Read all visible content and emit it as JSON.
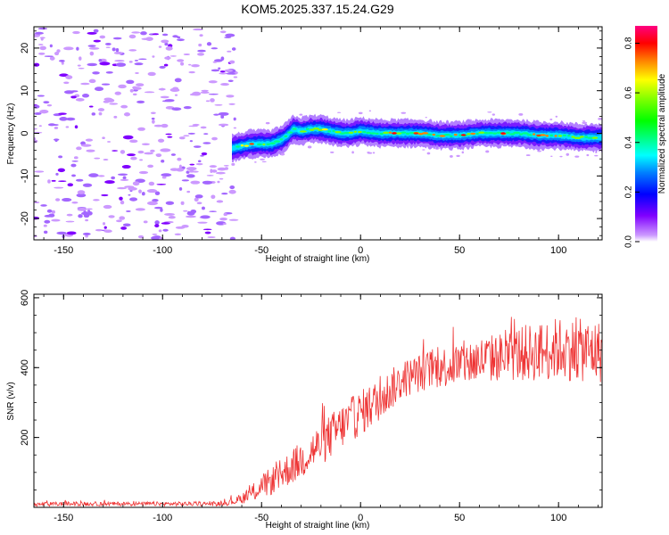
{
  "chart_data": [
    {
      "type": "heatmap",
      "title": "KOM5.2025.337.15.24.G29",
      "xlabel": "Height of straight line (km)",
      "ylabel": "Frequency (Hz)",
      "xlim": [
        -165,
        122
      ],
      "ylim": [
        -25,
        25
      ],
      "xticks": [
        -150,
        -100,
        -50,
        0,
        50,
        100
      ],
      "yticks": [
        -20,
        -10,
        0,
        10,
        20
      ],
      "colorbar": {
        "label": "Normalized spectral amplitude",
        "range": [
          0,
          0.87
        ],
        "ticks": [
          0.0,
          0.2,
          0.4,
          0.6,
          0.8
        ],
        "colors": [
          "#cc99ff",
          "#8000ff",
          "#0000ff",
          "#0080ff",
          "#00ffff",
          "#00ff80",
          "#00ff00",
          "#80ff00",
          "#ffff00",
          "#ff8000",
          "#ff0000",
          "#ff0080"
        ]
      },
      "noise_region_x": [
        -165,
        -65
      ],
      "trace": {
        "x": [
          -65,
          -60,
          -55,
          -50,
          -45,
          -40,
          -37,
          -34,
          -30,
          -25,
          -20,
          -15,
          -10,
          -5,
          0,
          10,
          20,
          30,
          40,
          50,
          60,
          70,
          80,
          90,
          100,
          110,
          122
        ],
        "freq": [
          -3.5,
          -3,
          -2.5,
          -2.5,
          -2.5,
          -1.5,
          -0.5,
          1,
          0.5,
          1,
          1,
          0.5,
          0,
          0,
          0.5,
          0,
          0,
          0,
          -0.5,
          -0.5,
          0,
          0,
          0,
          -0.5,
          -0.5,
          -1,
          -1
        ],
        "peak_amplitude": [
          0.5,
          0.55,
          0.6,
          0.6,
          0.65,
          0.6,
          0.55,
          0.55,
          0.6,
          0.65,
          0.6,
          0.6,
          0.65,
          0.6,
          0.65,
          0.75,
          0.7,
          0.7,
          0.75,
          0.85,
          0.75,
          0.85,
          0.75,
          0.75,
          0.7,
          0.65,
          0.6
        ]
      }
    },
    {
      "type": "line",
      "xlabel": "Height of straight line (km)",
      "ylabel": "SNR (v/v)",
      "xlim": [
        -165,
        122
      ],
      "ylim": [
        0,
        610
      ],
      "xticks": [
        -150,
        -100,
        -50,
        0,
        50,
        100
      ],
      "yticks": [
        200,
        400,
        600
      ],
      "series": [
        {
          "name": "SNR",
          "color": "#ee3333",
          "x": [
            -165,
            -150,
            -125,
            -100,
            -85,
            -70,
            -62,
            -55,
            -50,
            -45,
            -40,
            -35,
            -30,
            -25,
            -20,
            -15,
            -10,
            -5,
            0,
            5,
            10,
            15,
            20,
            25,
            30,
            35,
            40,
            45,
            50,
            60,
            70,
            80,
            90,
            100,
            110,
            122
          ],
          "mean": [
            8,
            10,
            10,
            10,
            10,
            10,
            20,
            40,
            60,
            75,
            95,
            115,
            135,
            160,
            180,
            205,
            230,
            250,
            270,
            290,
            310,
            335,
            360,
            375,
            385,
            395,
            400,
            405,
            410,
            420,
            430,
            440,
            445,
            455,
            450,
            445
          ],
          "spread": [
            6,
            6,
            6,
            6,
            6,
            6,
            12,
            25,
            35,
            40,
            45,
            50,
            55,
            60,
            60,
            65,
            65,
            65,
            65,
            65,
            60,
            60,
            55,
            55,
            55,
            55,
            60,
            60,
            65,
            70,
            70,
            80,
            85,
            90,
            90,
            90
          ]
        }
      ]
    }
  ]
}
